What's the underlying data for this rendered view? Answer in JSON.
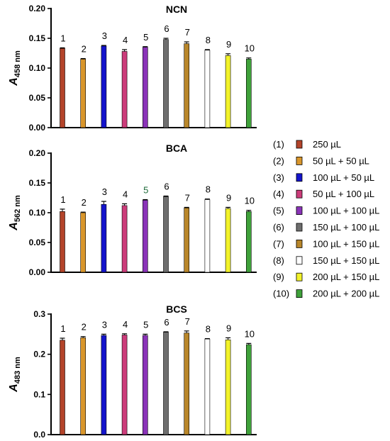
{
  "chart_data": [
    {
      "type": "bar",
      "title": "NCN",
      "ylabel_main": "A",
      "ylabel_sub": "458 nm",
      "ylim": [
        0,
        0.2
      ],
      "yticks": [
        "0.00",
        "0.05",
        "0.10",
        "0.15",
        "0.20"
      ],
      "categories": [
        "1",
        "2",
        "3",
        "4",
        "5",
        "6",
        "7",
        "8",
        "9",
        "10"
      ],
      "values": [
        0.133,
        0.115,
        0.137,
        0.128,
        0.135,
        0.148,
        0.141,
        0.13,
        0.121,
        0.115
      ],
      "errors": [
        0.001,
        0.001,
        0.001,
        0.003,
        0.001,
        0.002,
        0.003,
        0.001,
        0.003,
        0.002
      ],
      "bar_labels": [
        "1",
        "2",
        "3",
        "4",
        "5",
        "6",
        "7",
        "8",
        "9",
        "10"
      ],
      "bar_label_colors": [
        "#000000",
        "#000000",
        "#000000",
        "#000000",
        "#000000",
        "#000000",
        "#000000",
        "#000000",
        "#000000",
        "#000000"
      ]
    },
    {
      "type": "bar",
      "title": "BCA",
      "ylabel_main": "A",
      "ylabel_sub": "562 nm",
      "ylim": [
        0,
        0.2
      ],
      "yticks": [
        "0.00",
        "0.05",
        "0.10",
        "0.15",
        "0.20"
      ],
      "categories": [
        "1",
        "2",
        "3",
        "4",
        "5",
        "6",
        "7",
        "8",
        "9",
        "10"
      ],
      "values": [
        0.102,
        0.1,
        0.114,
        0.112,
        0.121,
        0.127,
        0.108,
        0.122,
        0.107,
        0.102
      ],
      "errors": [
        0.004,
        0.001,
        0.005,
        0.003,
        0.001,
        0.001,
        0.001,
        0.001,
        0.002,
        0.002
      ],
      "bar_labels": [
        "1",
        "2",
        "3",
        "4",
        "5",
        "6",
        "7",
        "8",
        "9",
        "10"
      ],
      "bar_label_colors": [
        "#000000",
        "#000000",
        "#000000",
        "#000000",
        "#1e6b3a",
        "#000000",
        "#000000",
        "#000000",
        "#000000",
        "#000000"
      ]
    },
    {
      "type": "bar",
      "title": "BCS",
      "ylabel_main": "A",
      "ylabel_sub": "483 nm",
      "ylim": [
        0,
        0.3
      ],
      "yticks": [
        "0.0",
        "0.1",
        "0.2",
        "0.3"
      ],
      "categories": [
        "1",
        "2",
        "3",
        "4",
        "5",
        "6",
        "7",
        "8",
        "9",
        "10"
      ],
      "values": [
        0.235,
        0.241,
        0.247,
        0.248,
        0.247,
        0.255,
        0.253,
        0.238,
        0.236,
        0.224
      ],
      "errors": [
        0.005,
        0.003,
        0.003,
        0.003,
        0.003,
        0.001,
        0.005,
        0.001,
        0.005,
        0.003
      ],
      "bar_labels": [
        "1",
        "2",
        "3",
        "4",
        "5",
        "6",
        "7",
        "8",
        "9",
        "10"
      ],
      "bar_label_colors": [
        "#000000",
        "#000000",
        "#000000",
        "#000000",
        "#000000",
        "#000000",
        "#000000",
        "#000000",
        "#000000",
        "#000000"
      ]
    }
  ],
  "bar_colors": [
    "#b3442a",
    "#d9962b",
    "#1414cc",
    "#cc3c7a",
    "#8a33b8",
    "#6e6e6e",
    "#b8862a",
    "#ffffff",
    "#f2f22a",
    "#3fa13a"
  ],
  "legend": [
    {
      "code": "(1)",
      "label": "250 µL",
      "color": "#b3442a"
    },
    {
      "code": "(2)",
      "label": "50 µL + 50 µL",
      "color": "#d9962b"
    },
    {
      "code": "(3)",
      "label": "100 µL + 50 µL",
      "color": "#1414cc"
    },
    {
      "code": "(4)",
      "label": "50 µL + 100 µL",
      "color": "#cc3c7a"
    },
    {
      "code": "(5)",
      "label": "100 µL + 100 µL",
      "color": "#8a33b8"
    },
    {
      "code": "(6)",
      "label": "150 µL + 100 µL",
      "color": "#6e6e6e"
    },
    {
      "code": "(7)",
      "label": "100 µL + 150 µL",
      "color": "#b8862a"
    },
    {
      "code": "(8)",
      "label": "150 µL + 150 µL",
      "color": "#ffffff"
    },
    {
      "code": "(9)",
      "label": "200 µL + 150 µL",
      "color": "#f2f22a"
    },
    {
      "code": "(10)",
      "label": "200 µL + 200 µL",
      "color": "#3fa13a"
    }
  ]
}
